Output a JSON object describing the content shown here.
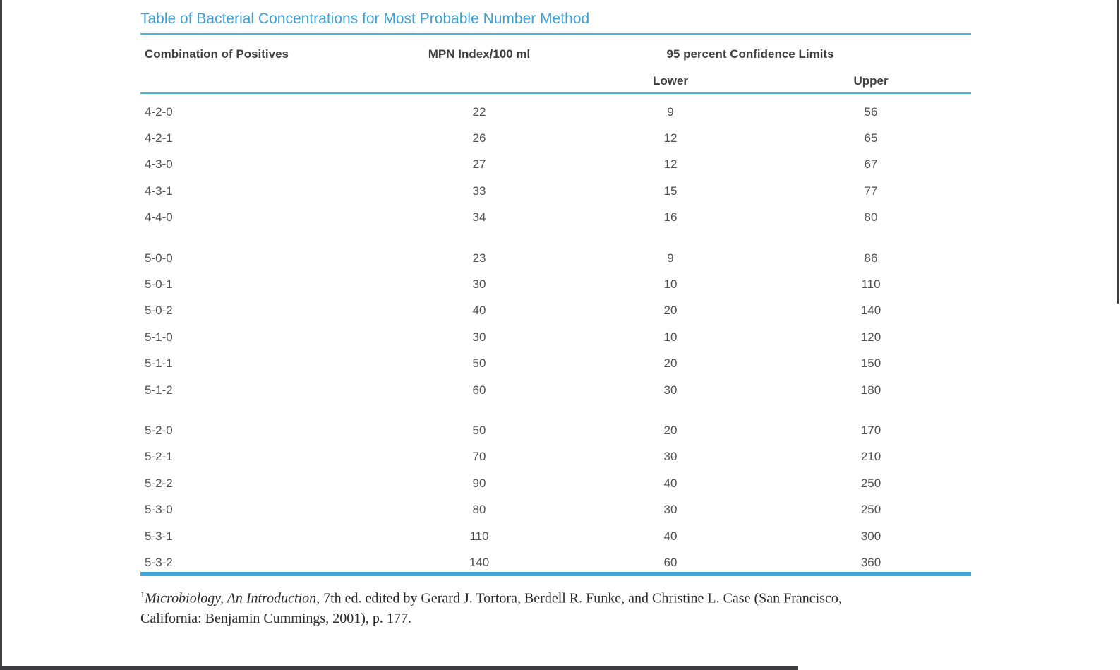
{
  "page": {
    "title": "Table of Bacterial Concentrations for Most Probable Number Method"
  },
  "table": {
    "headers": {
      "col1": "Combination of Positives",
      "col2": "MPN Index/100 ml",
      "confidence_group": "95 percent Confidence Limits",
      "col3": "Lower",
      "col4": "Upper"
    },
    "groups": [
      {
        "rows": [
          {
            "combination": "4-2-0",
            "mpn": "22",
            "lower": "9",
            "upper": "56"
          },
          {
            "combination": "4-2-1",
            "mpn": "26",
            "lower": "12",
            "upper": "65"
          },
          {
            "combination": "4-3-0",
            "mpn": "27",
            "lower": "12",
            "upper": "67"
          },
          {
            "combination": "4-3-1",
            "mpn": "33",
            "lower": "15",
            "upper": "77"
          },
          {
            "combination": "4-4-0",
            "mpn": "34",
            "lower": "16",
            "upper": "80"
          }
        ]
      },
      {
        "rows": [
          {
            "combination": "5-0-0",
            "mpn": "23",
            "lower": "9",
            "upper": "86"
          },
          {
            "combination": "5-0-1",
            "mpn": "30",
            "lower": "10",
            "upper": "110"
          },
          {
            "combination": "5-0-2",
            "mpn": "40",
            "lower": "20",
            "upper": "140"
          },
          {
            "combination": "5-1-0",
            "mpn": "30",
            "lower": "10",
            "upper": "120"
          },
          {
            "combination": "5-1-1",
            "mpn": "50",
            "lower": "20",
            "upper": "150"
          },
          {
            "combination": "5-1-2",
            "mpn": "60",
            "lower": "30",
            "upper": "180"
          }
        ]
      },
      {
        "rows": [
          {
            "combination": "5-2-0",
            "mpn": "50",
            "lower": "20",
            "upper": "170"
          },
          {
            "combination": "5-2-1",
            "mpn": "70",
            "lower": "30",
            "upper": "210"
          },
          {
            "combination": "5-2-2",
            "mpn": "90",
            "lower": "40",
            "upper": "250"
          },
          {
            "combination": "5-3-0",
            "mpn": "80",
            "lower": "30",
            "upper": "250"
          },
          {
            "combination": "5-3-1",
            "mpn": "110",
            "lower": "40",
            "upper": "300"
          },
          {
            "combination": "5-3-2",
            "mpn": "140",
            "lower": "60",
            "upper": "360"
          }
        ]
      }
    ]
  },
  "footnote": {
    "marker": "1",
    "italic_title": "Microbiology, An Introduction",
    "line1_rest": ", 7th ed. edited by Gerard J. Tortora, Berdell R. Funke, and Christine L. Case (San Francisco,",
    "line2": "California: Benjamin Cummings, 2001), p. 177."
  },
  "colors": {
    "title_blue": "#41a0d2",
    "thin_rule": "#4ab3df",
    "thick_rule": "#3fa9dc",
    "header_text": "#3f3f41",
    "data_text": "#505052",
    "footnote_text": "#2e2a2b",
    "page_border": "#3c3c3e"
  }
}
